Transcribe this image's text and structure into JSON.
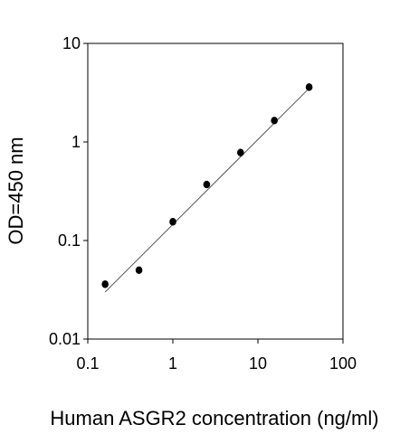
{
  "chart_data": {
    "type": "scatter",
    "x_scale": "log",
    "y_scale": "log",
    "xlabel": "Human ASGR2 concentration (ng/ml)",
    "ylabel": "OD=450 nm",
    "xlim": [
      0.1,
      100
    ],
    "ylim": [
      0.01,
      10
    ],
    "x_ticks": [
      "0.1",
      "1",
      "10",
      "100"
    ],
    "y_ticks": [
      "0.01",
      "0.1",
      "1",
      "10"
    ],
    "grid": false,
    "legend": "none",
    "series": [
      {
        "x": [
          0.16,
          0.4,
          1.0,
          2.5,
          6.25,
          15.6,
          40.0
        ],
        "y": [
          0.036,
          0.05,
          0.155,
          0.37,
          0.78,
          1.65,
          3.6
        ]
      }
    ],
    "fit_line": {
      "x": [
        0.16,
        40.0
      ],
      "y": [
        0.03,
        3.5
      ]
    },
    "colors": {
      "marker": "#000000",
      "fit_line": "#555555",
      "axis": "#000000"
    }
  }
}
